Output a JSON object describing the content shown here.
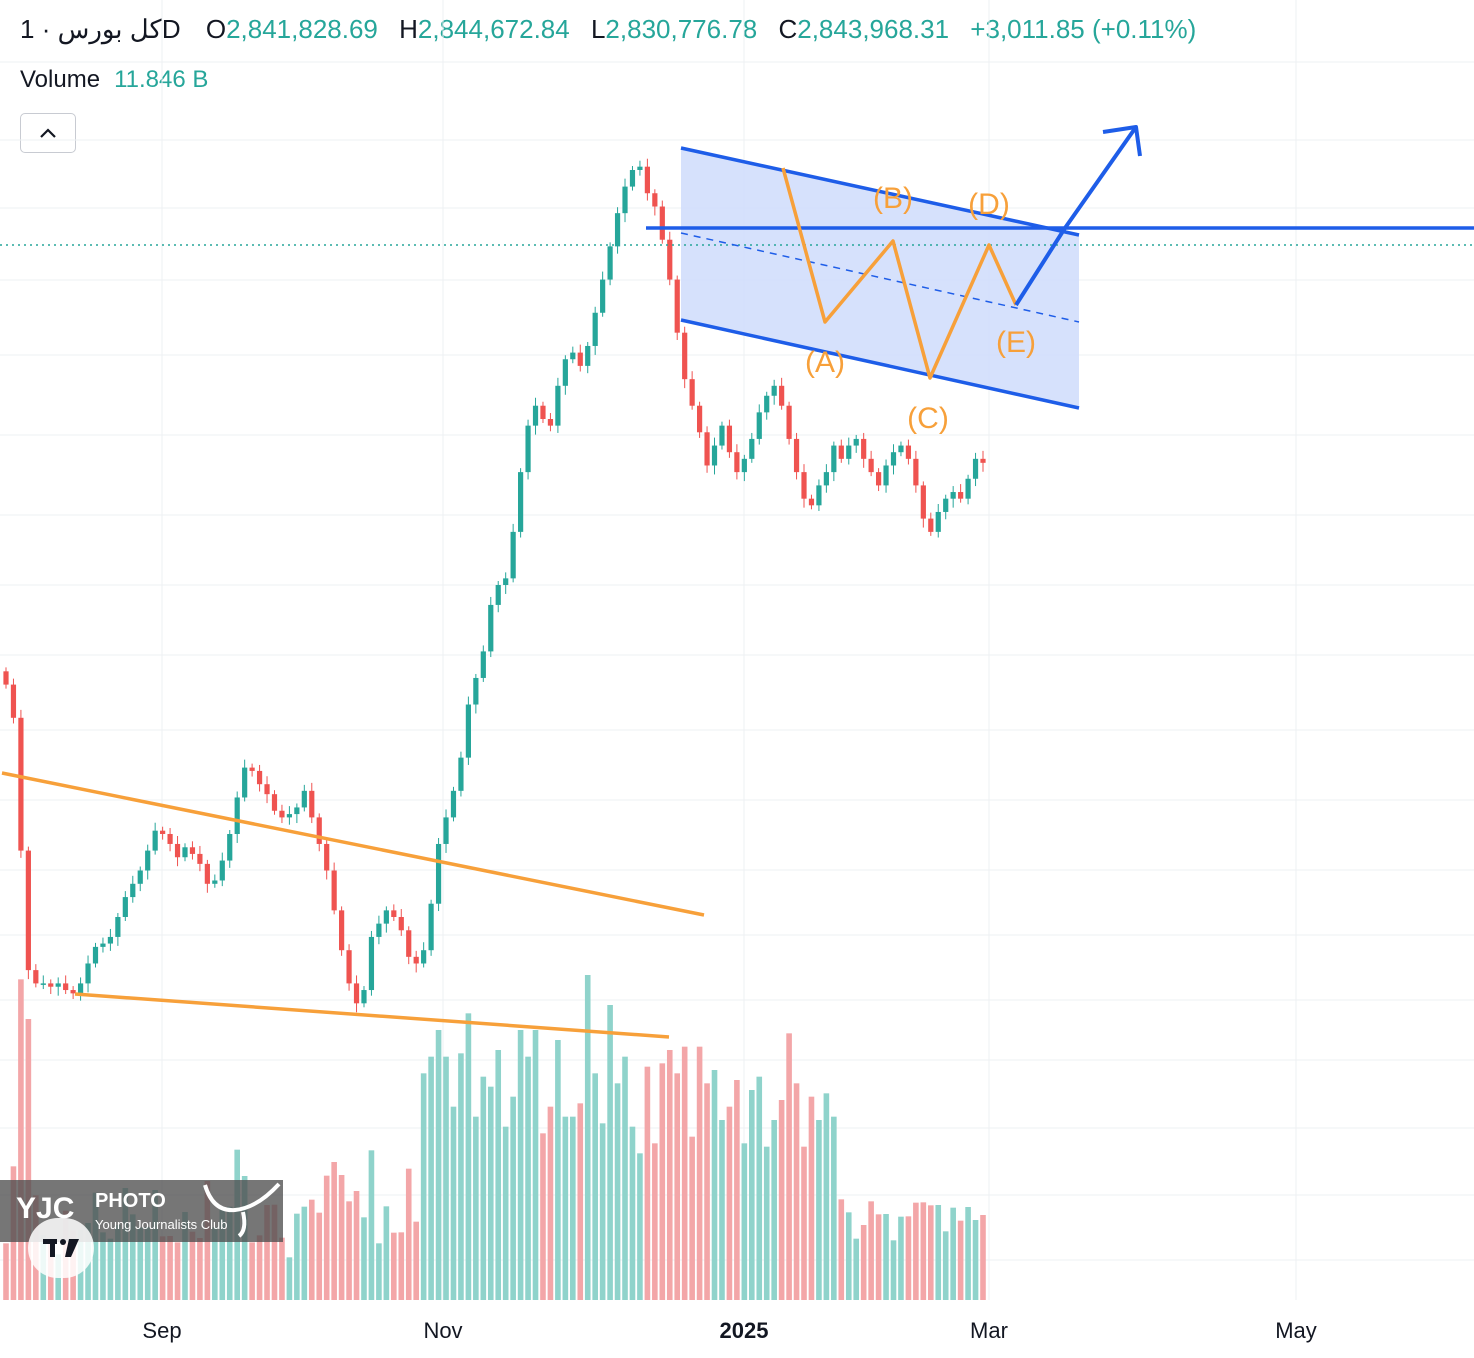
{
  "header": {
    "symbol": "کل بورس · 1D",
    "open_label": "O",
    "open": "2,841,828.69",
    "high_label": "H",
    "high": "2,844,672.84",
    "low_label": "L",
    "low": "2,830,776.78",
    "close_label": "C",
    "close": "2,843,968.31",
    "change": "+3,011.85 (+0.11%)"
  },
  "volume": {
    "label": "Volume",
    "value": "11.846 B"
  },
  "colors": {
    "up": "#26a69a",
    "down": "#ef5350",
    "up_volume": "#8fd3cb",
    "down_volume": "#f3a6a8",
    "wave": "#f7a03a",
    "channel": "#1e5de8",
    "channel_fill": "#cfdcfb",
    "last_price_line": "#26a69a"
  },
  "chart_data": {
    "type": "candlestick",
    "title": "کل بورس · 1D",
    "xlabel": "",
    "ylabel": "",
    "x_ticks": [
      "Sep",
      "Nov",
      "2025",
      "Mar",
      "May"
    ],
    "ylim": [
      1300000,
      3150000
    ],
    "last_close": 2843968.31,
    "candles_close_series": [
      2510000,
      2460000,
      2260000,
      2080000,
      2060000,
      2060000,
      2055000,
      2060000,
      2050000,
      2045000,
      2060000,
      2090000,
      2115000,
      2120000,
      2130000,
      2160000,
      2190000,
      2210000,
      2230000,
      2260000,
      2290000,
      2285000,
      2270000,
      2250000,
      2265000,
      2255000,
      2240000,
      2210000,
      2215000,
      2245000,
      2285000,
      2340000,
      2385000,
      2380000,
      2360000,
      2345000,
      2320000,
      2310000,
      2315000,
      2325000,
      2350000,
      2310000,
      2270000,
      2230000,
      2170000,
      2110000,
      2060000,
      2030000,
      2050000,
      2130000,
      2150000,
      2170000,
      2160000,
      2140000,
      2100000,
      2090000,
      2110000,
      2180000,
      2270000,
      2310000,
      2350000,
      2400000,
      2480000,
      2520000,
      2560000,
      2630000,
      2660000,
      2670000,
      2740000,
      2830000,
      2900000,
      2930000,
      2910000,
      2900000,
      2960000,
      3000000,
      3010000,
      2990000,
      3020000,
      3070000,
      3120000,
      3170000,
      3220000,
      3260000,
      3285000,
      3290000,
      3250000,
      3230000,
      3180000,
      3120000,
      3040000,
      2970000,
      2930000,
      2890000,
      2840000,
      2870000,
      2900000,
      2860000,
      2830000,
      2850000,
      2880000,
      2920000,
      2945000,
      2960000,
      2930000,
      2880000,
      2830000,
      2790000,
      2780000,
      2810000,
      2830000,
      2870000,
      2850000,
      2870000,
      2880000,
      2850000,
      2830000,
      2810000,
      2840000,
      2860000,
      2870000,
      2850000,
      2810000,
      2760000,
      2740000,
      2770000,
      2790000,
      2800000,
      2790000,
      2820000,
      2850000,
      2844000
    ],
    "annotations": {
      "wave_labels": [
        "(A)",
        "(B)",
        "(C)",
        "(D)",
        "(E)"
      ],
      "patterns": [
        "falling wedge",
        "descending channel",
        "breakout arrow"
      ]
    },
    "grid": true,
    "legend": "none"
  },
  "watermark": {
    "brand": "YJC",
    "kind": "PHOTO",
    "org": "Young Journalists Club"
  },
  "tradingview_logo": "tv-logo-icon"
}
